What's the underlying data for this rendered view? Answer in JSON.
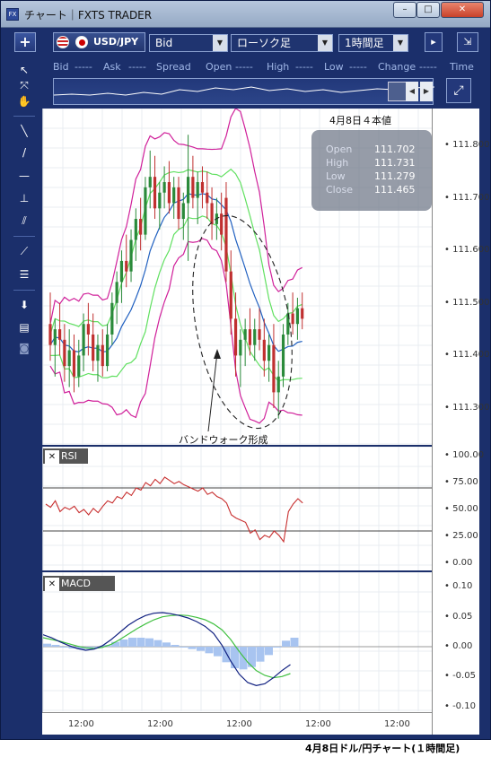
{
  "window": {
    "title": "チャート｜FXTS TRADER",
    "logo": "FX"
  },
  "toolbar": {
    "add_label": "+",
    "pair": "USD/JPY",
    "price_type": "Bid",
    "chart_style": "ローソク足",
    "timeframe": "1時間足",
    "expand_label": "⇲"
  },
  "quotes": {
    "bid": "Bid",
    "ask": "Ask",
    "spread": "Spread",
    "open": "Open",
    "high": "High",
    "low": "Low",
    "change": "Change",
    "time": "Time",
    "dash": "-----"
  },
  "info": {
    "header": "4月8日４本値",
    "open_label": "Open",
    "open": "111.702",
    "high_label": "High",
    "high": "111.731",
    "low_label": "Low",
    "low": "111.279",
    "close_label": "Close",
    "close": "111.465"
  },
  "annotation": "バンドウォーク形成",
  "panels": {
    "rsi": "RSI",
    "macd": "MACD"
  },
  "caption": "4月8日ドル/円チャート(１時間足)",
  "colors": {
    "navy": "#1b2f6b",
    "up": "#2a8a3a",
    "down": "#c03030",
    "bb_outer": "#d0209a",
    "bb_inner": "#60e060",
    "ma": "#2060c0",
    "rsi": "#c83030",
    "macd": "#102080",
    "signal": "#40c040",
    "hist": "#a8c4f0"
  },
  "chart_data": [
    {
      "type": "candlestick",
      "title": "",
      "y_ticks": [
        "111.800",
        "111.700",
        "111.600",
        "111.500",
        "111.400",
        "111.300"
      ],
      "ylim": [
        111.23,
        111.87
      ],
      "x_ticks": [
        "12:00",
        "12:00",
        "12:00",
        "12:00",
        "12:00"
      ],
      "candles": [
        [
          111.46,
          111.52,
          111.39,
          111.42
        ],
        [
          111.42,
          111.47,
          111.36,
          111.45
        ],
        [
          111.45,
          111.5,
          111.4,
          111.43
        ],
        [
          111.43,
          111.46,
          111.35,
          111.38
        ],
        [
          111.38,
          111.45,
          111.34,
          111.41
        ],
        [
          111.41,
          111.44,
          111.33,
          111.36
        ],
        [
          111.36,
          111.43,
          111.34,
          111.4
        ],
        [
          111.4,
          111.48,
          111.37,
          111.46
        ],
        [
          111.46,
          111.5,
          111.4,
          111.44
        ],
        [
          111.44,
          111.48,
          111.37,
          111.39
        ],
        [
          111.39,
          111.44,
          111.35,
          111.42
        ],
        [
          111.42,
          111.45,
          111.36,
          111.38
        ],
        [
          111.38,
          111.46,
          111.37,
          111.44
        ],
        [
          111.44,
          111.52,
          111.42,
          111.5
        ],
        [
          111.5,
          111.56,
          111.46,
          111.54
        ],
        [
          111.54,
          111.6,
          111.5,
          111.58
        ],
        [
          111.58,
          111.63,
          111.53,
          111.56
        ],
        [
          111.56,
          111.64,
          111.54,
          111.62
        ],
        [
          111.62,
          111.68,
          111.58,
          111.66
        ],
        [
          111.66,
          111.7,
          111.6,
          111.63
        ],
        [
          111.63,
          111.74,
          111.62,
          111.72
        ],
        [
          111.72,
          111.79,
          111.68,
          111.74
        ],
        [
          111.74,
          111.78,
          111.66,
          111.68
        ],
        [
          111.68,
          111.73,
          111.64,
          111.71
        ],
        [
          111.71,
          111.76,
          111.68,
          111.73
        ],
        [
          111.73,
          111.77,
          111.67,
          111.69
        ],
        [
          111.69,
          111.74,
          111.66,
          111.72
        ],
        [
          111.72,
          111.74,
          111.64,
          111.66
        ],
        [
          111.66,
          111.71,
          111.62,
          111.69
        ],
        [
          111.69,
          111.82,
          111.58,
          111.74
        ],
        [
          111.74,
          111.78,
          111.68,
          111.7
        ],
        [
          111.7,
          111.75,
          111.65,
          111.73
        ],
        [
          111.73,
          111.76,
          111.68,
          111.71
        ],
        [
          111.71,
          111.75,
          111.66,
          111.69
        ],
        [
          111.69,
          111.72,
          111.62,
          111.65
        ],
        [
          111.65,
          111.7,
          111.62,
          111.67
        ],
        [
          111.67,
          111.71,
          111.6,
          111.63
        ],
        [
          111.7,
          111.73,
          111.54,
          111.56
        ],
        [
          111.56,
          111.6,
          111.44,
          111.47
        ],
        [
          111.47,
          111.52,
          111.36,
          111.4
        ],
        [
          111.4,
          111.45,
          111.34,
          111.43
        ],
        [
          111.43,
          111.47,
          111.38,
          111.45
        ],
        [
          111.45,
          111.49,
          111.4,
          111.42
        ],
        [
          111.42,
          111.47,
          111.39,
          111.45
        ],
        [
          111.45,
          111.49,
          111.41,
          111.43
        ],
        [
          111.43,
          111.47,
          111.36,
          111.39
        ],
        [
          111.39,
          111.44,
          111.35,
          111.42
        ],
        [
          111.42,
          111.46,
          111.3,
          111.33
        ],
        [
          111.33,
          111.39,
          111.28,
          111.36
        ],
        [
          111.36,
          111.46,
          111.34,
          111.44
        ],
        [
          111.44,
          111.5,
          111.42,
          111.48
        ],
        [
          111.48,
          111.52,
          111.44,
          111.46
        ],
        [
          111.46,
          111.51,
          111.43,
          111.49
        ],
        [
          111.49,
          111.52,
          111.45,
          111.47
        ]
      ]
    },
    {
      "type": "line",
      "title": "RSI",
      "y_ticks": [
        "100.00",
        "75.00",
        "50.00",
        "25.00",
        "0.00"
      ],
      "ylim": [
        0,
        100
      ],
      "levels": [
        70,
        30
      ],
      "values": [
        55,
        52,
        58,
        48,
        52,
        50,
        53,
        47,
        50,
        45,
        51,
        47,
        53,
        58,
        56,
        62,
        60,
        66,
        63,
        70,
        68,
        75,
        72,
        78,
        74,
        80,
        77,
        74,
        76,
        73,
        71,
        69,
        67,
        70,
        64,
        66,
        62,
        60,
        56,
        45,
        42,
        40,
        38,
        28,
        31,
        22,
        26,
        24,
        30,
        26,
        20,
        48,
        55,
        60,
        56
      ]
    },
    {
      "type": "line",
      "title": "MACD",
      "y_ticks": [
        "0.10",
        "0.05",
        "0.00",
        "-0.05",
        "-0.10"
      ],
      "ylim": [
        -0.12,
        0.12
      ],
      "series": [
        {
          "name": "",
          "values": [
            0.02,
            0.015,
            0.008,
            0.002,
            -0.003,
            -0.006,
            -0.004,
            0.002,
            0.012,
            0.024,
            0.036,
            0.045,
            0.052,
            0.056,
            0.057,
            0.055,
            0.052,
            0.048,
            0.042,
            0.034,
            0.022,
            0.002,
            -0.024,
            -0.046,
            -0.06,
            -0.065,
            -0.062,
            -0.052,
            -0.04,
            -0.03
          ]
        },
        {
          "name": "",
          "values": [
            0.015,
            0.012,
            0.009,
            0.005,
            0.001,
            -0.002,
            -0.003,
            -0.001,
            0.004,
            0.012,
            0.021,
            0.03,
            0.038,
            0.045,
            0.05,
            0.052,
            0.053,
            0.052,
            0.049,
            0.045,
            0.038,
            0.028,
            0.012,
            -0.008,
            -0.026,
            -0.04,
            -0.048,
            -0.052,
            -0.05,
            -0.045
          ]
        }
      ],
      "histogram": [
        0.005,
        0.003,
        -0.001,
        -0.003,
        -0.004,
        -0.004,
        -0.002,
        0.003,
        0.008,
        0.012,
        0.015,
        0.015,
        0.014,
        0.011,
        0.007,
        0.003,
        -0.001,
        -0.004,
        -0.007,
        -0.011,
        -0.016,
        -0.026,
        -0.036,
        -0.038,
        -0.034,
        -0.025,
        -0.014,
        0.0,
        0.01,
        0.015
      ]
    }
  ]
}
